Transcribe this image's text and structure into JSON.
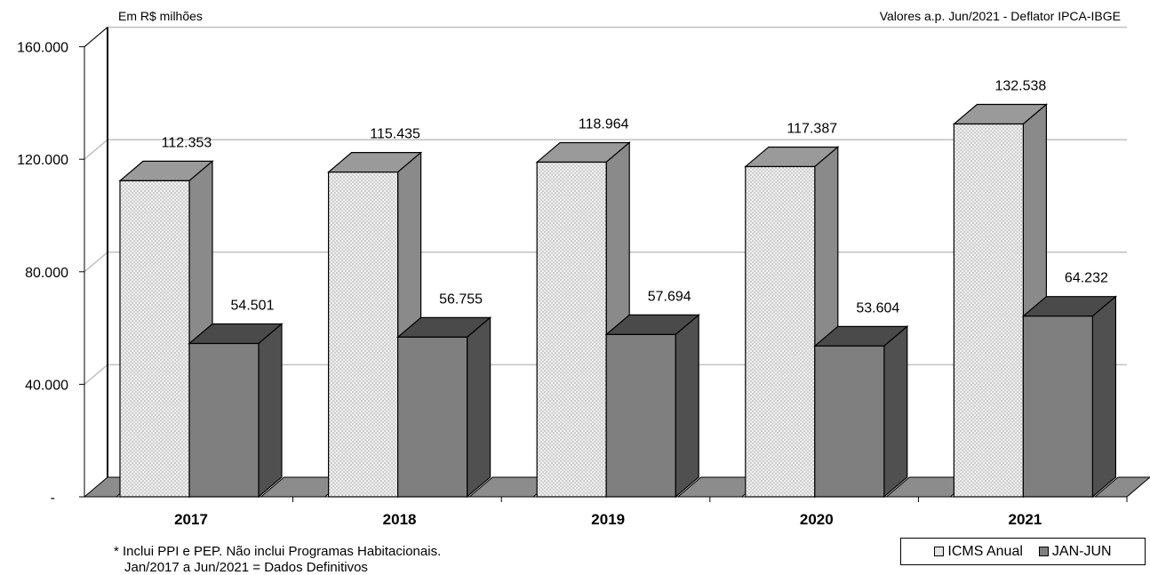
{
  "header": {
    "unit_label": "Em R$ milhões",
    "deflator_note": "Valores a.p. Jun/2021 - Deflator IPCA-IBGE"
  },
  "footnotes": {
    "line1": "* Inclui PPI e PEP. Não inclui Programas Habitacionais.",
    "line2": "Jan/2017 a Jun/2021 =  Dados Definitivos"
  },
  "legend": {
    "item1": "ICMS Anual",
    "item2": "JAN-JUN"
  },
  "colors": {
    "annual_front": "#e4e4e4",
    "annual_top": "#9a9a9a",
    "annual_side": "#8a8a8a",
    "semester_front": "#7f7f7f",
    "semester_top": "#4a4a4a",
    "semester_side": "#505050",
    "floor": "#8c8c8c",
    "grid": "#c0c0c0"
  },
  "chart_data": {
    "type": "bar",
    "categories": [
      "2017",
      "2018",
      "2019",
      "2020",
      "2021"
    ],
    "series": [
      {
        "name": "ICMS Anual",
        "values": [
          112353,
          115435,
          118964,
          117387,
          132538
        ],
        "labels": [
          "112.353",
          "115.435",
          "118.964",
          "117.387",
          "132.538"
        ]
      },
      {
        "name": "JAN-JUN",
        "values": [
          54501,
          56755,
          57694,
          53604,
          64232
        ],
        "labels": [
          "54.501",
          "56.755",
          "57.694",
          "53.604",
          "64.232"
        ]
      }
    ],
    "y_ticks": [
      0,
      40000,
      80000,
      120000,
      160000
    ],
    "y_tick_labels": [
      "-",
      "40.000",
      "80.000",
      "120.000",
      "160.000"
    ],
    "ylim": [
      0,
      160000
    ],
    "grid": true,
    "legend_position": "bottom-right",
    "style": "3d-clustered-column"
  }
}
